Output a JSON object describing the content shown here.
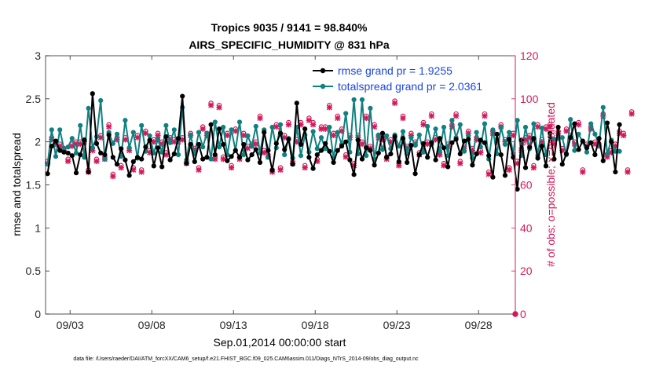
{
  "chart_data": {
    "type": "line",
    "title": "Tropics 9035 / 9141 = 98.840%",
    "subtitle": "AIRS_SPECIFIC_HUMIDITY @ 831 hPa",
    "xlabel": "Sep.01,2014 00:00:00 start",
    "ylabel": "rmse and totalspread",
    "y2label": "# of obs: o=possible; ×=evaluated",
    "footnote": "data file: /Users/raeder/DAI/ATM_forcXX/CAM6_setup/f.e21.FHIST_BGC.f09_025.CAM6assim.011/Diags_NTrS_2014-09/obs_diag_output.nc",
    "xlim": [
      1.5,
      30.25
    ],
    "ylim": [
      0,
      3
    ],
    "y2lim": [
      0,
      120
    ],
    "grid": false,
    "legend_position": "top-right",
    "x_ticks": [
      3,
      8,
      13,
      18,
      23,
      28
    ],
    "x_tick_labels": [
      "09/03",
      "09/08",
      "09/13",
      "09/18",
      "09/23",
      "09/28"
    ],
    "y_ticks": [
      0,
      0.5,
      1,
      1.5,
      2,
      2.5,
      3
    ],
    "y_tick_labels": [
      "0",
      "0.5",
      "1",
      "1.5",
      "2",
      "2.5",
      "3"
    ],
    "y2_ticks": [
      0,
      20,
      40,
      60,
      80,
      100,
      120
    ],
    "y2_tick_labels": [
      "0",
      "20",
      "40",
      "60",
      "80",
      "100",
      "120"
    ],
    "colors": {
      "rmse": "#000000",
      "spread": "#118080",
      "obs": "#d5195a",
      "legend_text": "#1a44e6"
    },
    "x_start": 1.625,
    "x_step": 0.25,
    "series": [
      {
        "name": "rmse grand pr = 1.9255",
        "values": [
          1.63,
          1.95,
          2.01,
          1.9,
          1.88,
          1.87,
          1.84,
          1.64,
          1.85,
          2.02,
          1.65,
          2.56,
          1.98,
          1.87,
          1.85,
          2.08,
          1.82,
          1.74,
          1.92,
          1.79,
          1.61,
          1.77,
          1.82,
          1.8,
          1.94,
          2.02,
          1.72,
          1.93,
          1.71,
          2.06,
          1.79,
          1.86,
          2.04,
          2.53,
          1.75,
          1.97,
          1.77,
          1.97,
          1.8,
          1.82,
          2.2,
          1.85,
          2.15,
          1.97,
          1.78,
          1.83,
          1.9,
          1.82,
          1.97,
          1.79,
          1.85,
          1.91,
          1.76,
          2.11,
          1.9,
          1.67,
          1.98,
          2.1,
          1.91,
          2.03,
          1.74,
          2.45,
          1.97,
          2.15,
          1.82,
          1.69,
          1.85,
          1.9,
          1.98,
          1.89,
          1.76,
          1.9,
          1.95,
          2.0,
          1.79,
          1.62,
          2.02,
          1.8,
          1.93,
          1.9,
          1.73,
          1.87,
          2.1,
          1.82,
          1.86,
          2.06,
          1.77,
          2.04,
          1.76,
          1.96,
          1.63,
          1.85,
          1.98,
          1.82,
          1.99,
          1.79,
          2.04,
          1.93,
          1.71,
          1.99,
          2.03,
          1.86,
          2.01,
          2.03,
          1.73,
          1.86,
          2.02,
          1.99,
          1.84,
          1.59,
          2.09,
          1.85,
          1.61,
          2.03,
          1.82,
          1.45,
          2.02,
          1.7,
          1.94,
          2.04,
          1.81,
          1.95,
          1.72,
          2.1,
          1.8,
          2.17,
          1.74,
          1.86,
          2.05,
          2.21,
          1.91,
          2.01,
          1.93,
          1.99,
          1.85,
          2.04,
          1.78,
          2.22,
          2.0,
          1.65,
          2.2
        ]
      },
      {
        "name": "totalspread grand pr = 2.0361",
        "values": [
          1.74,
          2.14,
          1.83,
          2.14,
          1.92,
          1.94,
          2.04,
          1.87,
          2.19,
          1.82,
          2.39,
          1.93,
          2.06,
          2.48,
          1.8,
          2.11,
          1.98,
          2.09,
          1.83,
          2.25,
          1.93,
          2.11,
          1.81,
          2.19,
          1.89,
          2.07,
          1.87,
          2.03,
          1.88,
          2.19,
          1.99,
          2.14,
          1.85,
          2.4,
          1.79,
          2.08,
          1.86,
          2.11,
          1.94,
          2.1,
          1.8,
          2.23,
          1.94,
          2.17,
          1.85,
          2.14,
          1.9,
          2.23,
          1.85,
          2.07,
          1.95,
          2.18,
          1.87,
          2.14,
          1.82,
          2.17,
          1.93,
          2.2,
          1.85,
          2.04,
          1.81,
          2.17,
          1.84,
          2.08,
          1.88,
          2.12,
          1.92,
          2.05,
          1.92,
          2.17,
          1.81,
          2.11,
          1.97,
          2.33,
          1.88,
          2.49,
          1.86,
          2.49,
          1.84,
          2.39,
          1.8,
          2.08,
          1.91,
          2.07,
          1.92,
          2.08,
          1.95,
          2.12,
          1.86,
          2.05,
          1.96,
          2.08,
          1.88,
          2.18,
          1.97,
          2.15,
          1.89,
          2.17,
          1.84,
          2.25,
          2.05,
          2.2,
          1.89,
          2.07,
          1.81,
          2.11,
          1.94,
          2.21,
          1.8,
          2.14,
          1.86,
          2.17,
          1.97,
          2.11,
          1.86,
          2.25,
          1.84,
          2.17,
          1.92,
          2.21,
          1.84,
          2.16,
          1.85,
          2.06,
          2.03,
          2.04,
          2.05,
          1.85,
          2.26,
          1.9,
          2.09,
          2.0,
          1.88,
          2.21,
          2.09,
          1.97,
          2.4,
          1.86,
          2.02,
          1.89,
          1.89
        ]
      },
      {
        "name": "# of obs possible",
        "axis": "y2",
        "values": [
          71,
          82,
          80,
          79,
          77,
          72,
          79,
          80,
          80,
          81,
          67,
          77,
          72,
          83,
          73,
          88,
          65,
          82,
          69,
          82,
          77,
          68,
          83,
          67,
          85,
          76,
          81,
          84,
          80,
          75,
          82,
          81,
          81,
          82,
          71,
          84,
          77,
          68,
          87,
          84,
          98,
          73,
          97,
          73,
          84,
          69,
          86,
          73,
          84,
          78,
          79,
          80,
          92,
          76,
          74,
          67,
          88,
          68,
          83,
          89,
          71,
          81,
          89,
          69,
          91,
          89,
          72,
          87,
          87,
          97,
          84,
          92,
          86,
          74,
          83,
          70,
          83,
          80,
          92,
          78,
          88,
          83,
          82,
          73,
          81,
          99,
          70,
          92,
          78,
          84,
          80,
          75,
          89,
          80,
          93,
          82,
          75,
          70,
          79,
          88,
          93,
          71,
          78,
          85,
          77,
          82,
          76,
          93,
          66,
          85,
          81,
          88,
          81,
          68,
          84,
          71,
          77,
          82,
          83,
          69,
          88,
          81,
          87,
          88,
          80,
          85,
          77,
          86,
          83,
          80,
          89,
          67,
          79,
          87,
          80,
          79,
          93,
          74,
          76,
          79,
          85,
          84,
          67,
          94
        ]
      },
      {
        "name": "# of obs evaluated",
        "axis": "y2",
        "values": [
          70,
          81,
          79,
          78,
          76,
          71,
          78,
          79,
          79,
          80,
          66,
          76,
          71,
          82,
          72,
          87,
          64,
          81,
          68,
          81,
          76,
          67,
          82,
          66,
          84,
          75,
          80,
          83,
          79,
          74,
          81,
          80,
          80,
          81,
          70,
          83,
          76,
          67,
          86,
          83,
          97,
          72,
          96,
          72,
          83,
          68,
          85,
          72,
          83,
          77,
          78,
          79,
          91,
          75,
          73,
          66,
          87,
          67,
          82,
          88,
          70,
          80,
          88,
          68,
          90,
          88,
          71,
          86,
          86,
          96,
          83,
          91,
          85,
          73,
          82,
          69,
          82,
          79,
          91,
          77,
          87,
          82,
          81,
          72,
          80,
          98,
          69,
          91,
          77,
          83,
          79,
          74,
          88,
          79,
          92,
          81,
          74,
          69,
          78,
          87,
          92,
          70,
          77,
          84,
          76,
          81,
          75,
          92,
          65,
          84,
          80,
          87,
          80,
          67,
          83,
          70,
          76,
          81,
          82,
          68,
          87,
          80,
          86,
          87,
          79,
          84,
          76,
          85,
          82,
          79,
          88,
          66,
          78,
          86,
          79,
          78,
          92,
          73,
          75,
          78,
          84,
          83,
          66,
          93
        ]
      }
    ]
  }
}
